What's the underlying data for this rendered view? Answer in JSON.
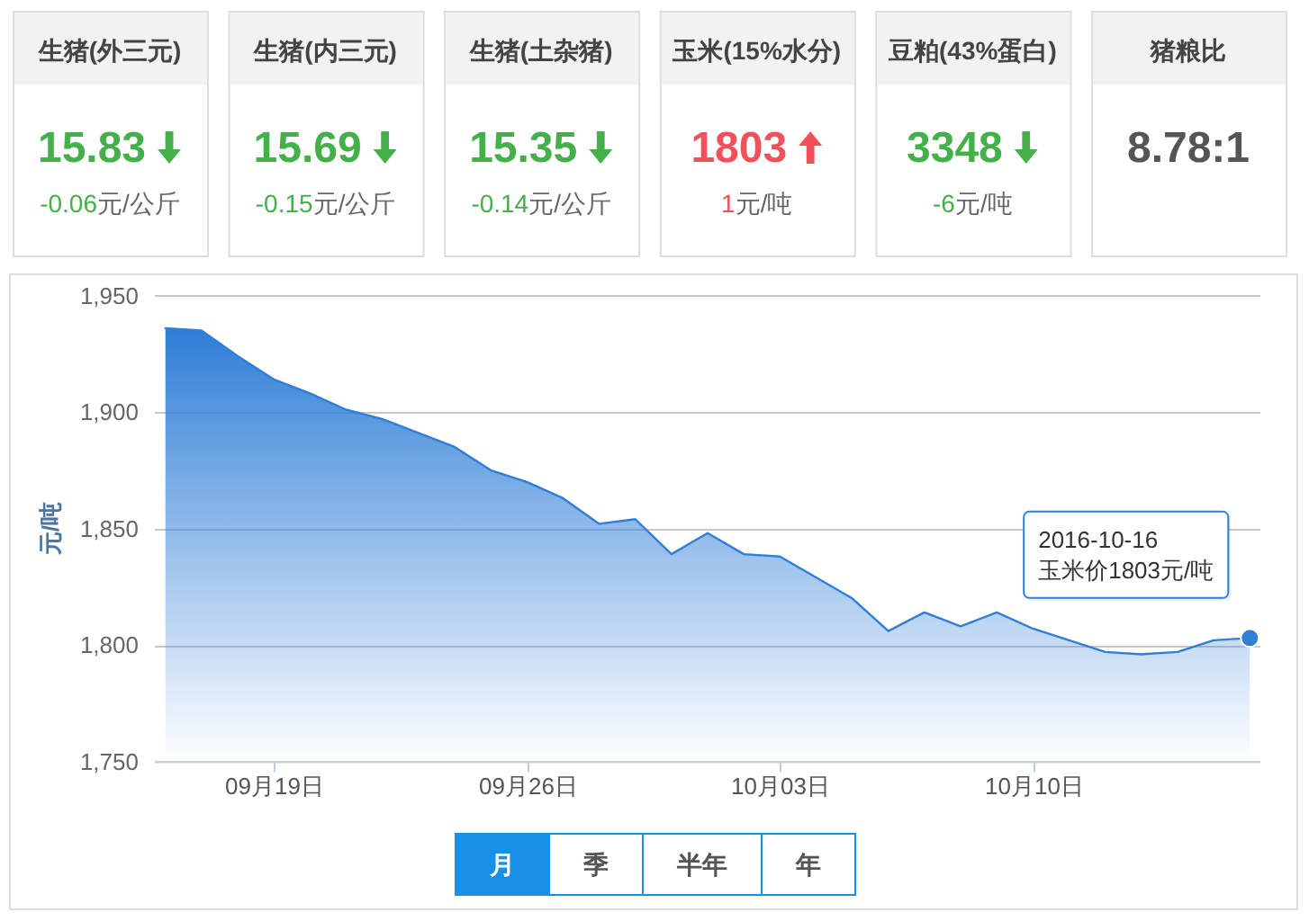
{
  "chart_data": [
    {
      "type": "other",
      "categories": [
        "生猪(外三元)",
        "生猪(内三元)",
        "生猪(土杂猪)",
        "玉米(15%水分)",
        "豆粕(43%蛋白)",
        "猪粮比"
      ],
      "annotations": [
        "15.83",
        "15.69",
        "15.35",
        "1803",
        "3348",
        "8.78:1"
      ],
      "values": [
        -0.06,
        -0.15,
        -0.14,
        1,
        -6,
        null
      ],
      "value_labels": [
        "-0.06元/公斤",
        "-0.15元/公斤",
        "-0.14元/公斤",
        "1元/吨",
        "-6元/吨",
        null
      ]
    },
    {
      "type": "area",
      "x": [
        "2016-09-16",
        "2016-09-17",
        "2016-09-18",
        "2016-09-19",
        "2016-09-20",
        "2016-09-21",
        "2016-09-22",
        "2016-09-23",
        "2016-09-24",
        "2016-09-25",
        "2016-09-26",
        "2016-09-27",
        "2016-09-28",
        "2016-09-29",
        "2016-09-30",
        "2016-10-01",
        "2016-10-02",
        "2016-10-03",
        "2016-10-04",
        "2016-10-05",
        "2016-10-06",
        "2016-10-07",
        "2016-10-08",
        "2016-10-09",
        "2016-10-10",
        "2016-10-11",
        "2016-10-12",
        "2016-10-13",
        "2016-10-14",
        "2016-10-15",
        "2016-10-16"
      ],
      "series": [
        {
          "color": "#2f7ed8",
          "values": [
            1936,
            1935,
            1924,
            1914,
            1908,
            1901,
            1897,
            1891,
            1885,
            1875,
            1870,
            1863,
            1852,
            1854,
            1839,
            1848,
            1839,
            1838,
            1829,
            1820,
            1806,
            1814,
            1808,
            1814,
            1807,
            1802,
            1797,
            1796,
            1797,
            1802,
            1803
          ]
        }
      ],
      "xlim": [
        "2016-09-15T17:00",
        "2016-10-16T07:00"
      ],
      "xticks": [
        {
          "value": "2016-09-19",
          "label": "09月19日"
        },
        {
          "value": "2016-09-26",
          "label": "09月26日"
        },
        {
          "value": "2016-10-03",
          "label": "10月03日"
        },
        {
          "value": "2016-10-10",
          "label": "10月10日"
        }
      ],
      "ylim": [
        1750,
        1950
      ],
      "yticks": [
        {
          "value": 1750,
          "label": "1,750"
        },
        {
          "value": 1800,
          "label": "1,800"
        },
        {
          "value": 1850,
          "label": "1,850"
        },
        {
          "value": 1900,
          "label": "1,900"
        },
        {
          "value": 1950,
          "label": "1,950"
        }
      ],
      "ylabel": "元/吨",
      "grid": "y",
      "annotations": [
        {
          "text": "2016-10-16\n玉米价1803元/吨",
          "x": "2016-10-16",
          "y": 1803
        },
        "月",
        "季",
        "半年",
        "年"
      ]
    }
  ]
}
